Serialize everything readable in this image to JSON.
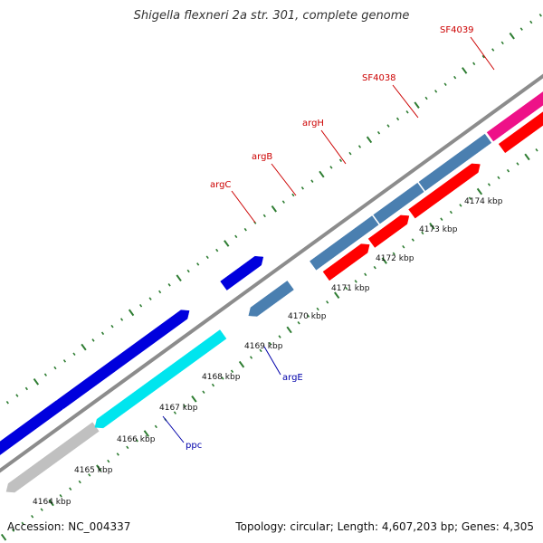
{
  "title": "Shigella flexneri 2a str. 301, complete genome",
  "footer": {
    "accession": "Accession: NC_004337",
    "summary": "Topology: circular; Length: 4,607,203 bp; Genes: 4,305"
  },
  "ticks": [
    {
      "label": "4164 kbp"
    },
    {
      "label": "4165 kbp"
    },
    {
      "label": "4166 kbp"
    },
    {
      "label": "4167 kbp"
    },
    {
      "label": "4168 kbp"
    },
    {
      "label": "4169 kbp"
    },
    {
      "label": "4170 kbp"
    },
    {
      "label": "4171 kbp"
    },
    {
      "label": "4172 kbp"
    },
    {
      "label": "4173 kbp"
    },
    {
      "label": "4174 kbp"
    }
  ],
  "genes": [
    {
      "name": "argC",
      "color": "#cc0000"
    },
    {
      "name": "argB",
      "color": "#cc0000"
    },
    {
      "name": "argH",
      "color": "#cc0000"
    },
    {
      "name": "SF4038",
      "color": "#cc0000"
    },
    {
      "name": "SF4039",
      "color": "#cc0000"
    },
    {
      "name": "argE",
      "color": "#0000aa"
    },
    {
      "name": "ppc",
      "color": "#0000aa"
    }
  ],
  "colors": {
    "backbone": "#8c8c8c",
    "tick": "#2e7d32",
    "cds_blue": "#0000dd",
    "cds_steel": "#4a7fb0",
    "cds_cyan": "#00e5ee",
    "cds_gray": "#c0c0c0",
    "cds_pink": "#ee1188",
    "cds_olive": "#6b8e23",
    "feature_red": "#ff0000"
  }
}
